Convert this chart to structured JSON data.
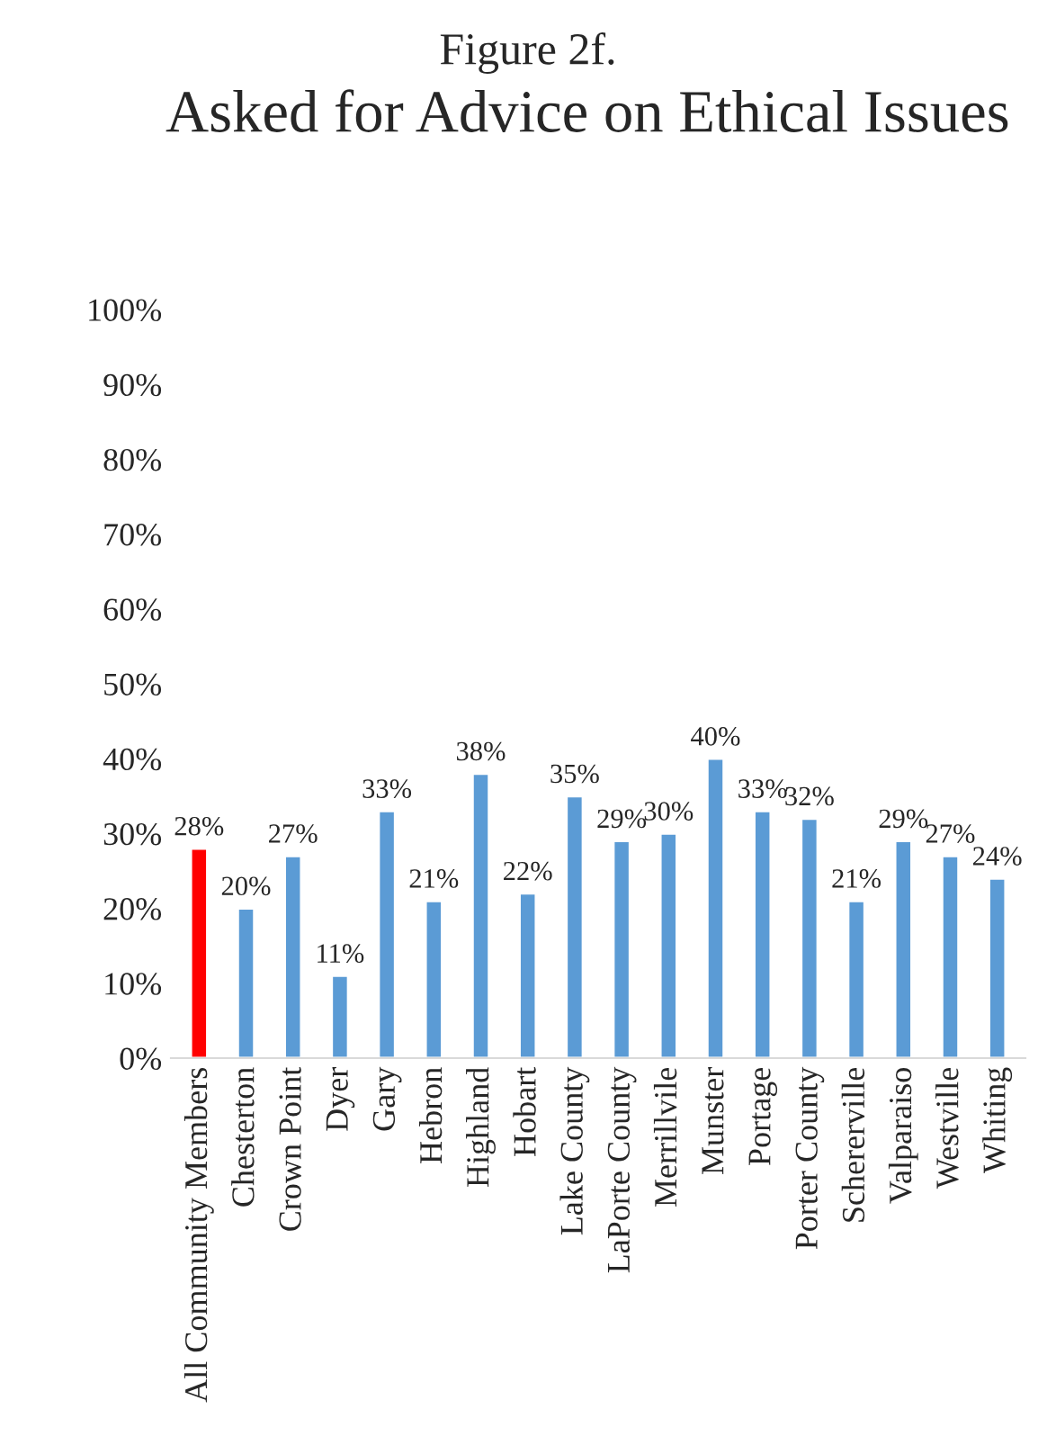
{
  "chart_data": {
    "type": "bar",
    "subtitle": "Figure 2f.",
    "title": "Asked for Advice on Ethical Issues",
    "categories": [
      "All Community Members",
      "Chesterton",
      "Crown Point",
      "Dyer",
      "Gary",
      "Hebron",
      "Highland",
      "Hobart",
      "Lake County",
      "LaPorte County",
      "Merrillvile",
      "Munster",
      "Portage",
      "Porter County",
      "Schererville",
      "Valparaiso",
      "Westville",
      "Whiting"
    ],
    "values": [
      28,
      20,
      27,
      11,
      33,
      21,
      38,
      22,
      35,
      29,
      30,
      40,
      33,
      32,
      21,
      29,
      27,
      24
    ],
    "value_labels": [
      "28%",
      "20%",
      "27%",
      "11%",
      "33%",
      "21%",
      "38%",
      "22%",
      "35%",
      "29%",
      "30%",
      "40%",
      "33%",
      "32%",
      "21%",
      "29%",
      "27%",
      "24%"
    ],
    "colors": [
      "#ff0000",
      "#5b9bd5",
      "#5b9bd5",
      "#5b9bd5",
      "#5b9bd5",
      "#5b9bd5",
      "#5b9bd5",
      "#5b9bd5",
      "#5b9bd5",
      "#5b9bd5",
      "#5b9bd5",
      "#5b9bd5",
      "#5b9bd5",
      "#5b9bd5",
      "#5b9bd5",
      "#5b9bd5",
      "#5b9bd5",
      "#5b9bd5"
    ],
    "ylim": [
      0,
      100
    ],
    "yticks": [
      {
        "value": 0,
        "label": "0%"
      },
      {
        "value": 10,
        "label": "10%"
      },
      {
        "value": 20,
        "label": "20%"
      },
      {
        "value": 30,
        "label": "30%"
      },
      {
        "value": 40,
        "label": "40%"
      },
      {
        "value": 50,
        "label": "50%"
      },
      {
        "value": 60,
        "label": "60%"
      },
      {
        "value": 70,
        "label": "70%"
      },
      {
        "value": 80,
        "label": "80%"
      },
      {
        "value": 90,
        "label": "90%"
      },
      {
        "value": 100,
        "label": "100%"
      }
    ],
    "grid": false,
    "legend": false
  }
}
